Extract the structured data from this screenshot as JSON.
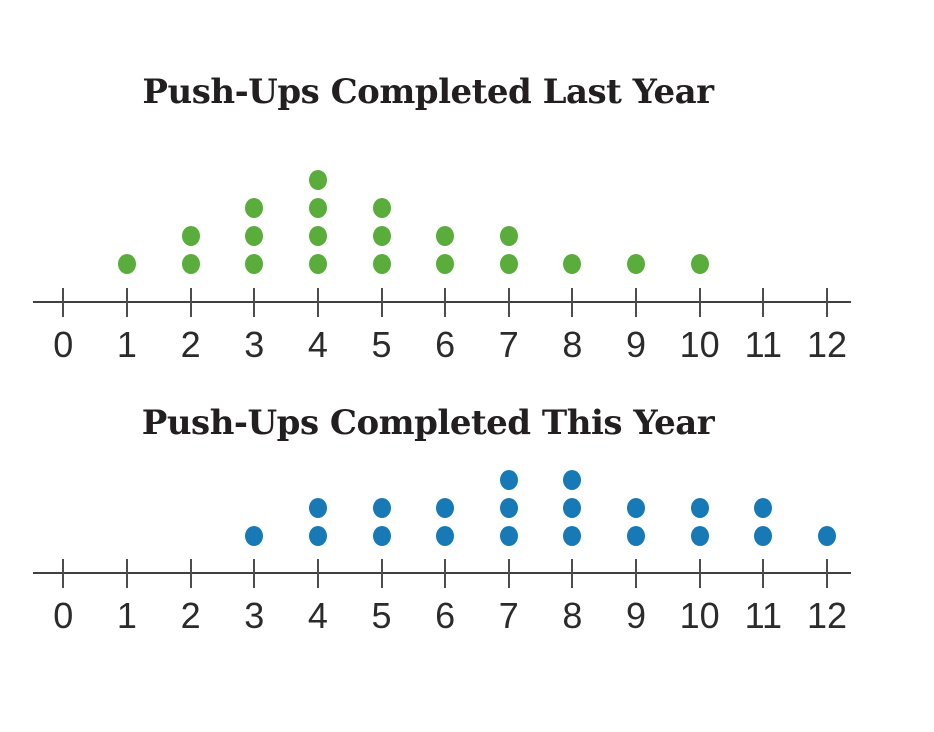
{
  "page": {
    "background_color": "#ffffff",
    "text_color": "#231f20"
  },
  "chart_data": [
    {
      "type": "dot_plot",
      "title": "Push-Ups Completed Last Year",
      "dot_color": "#5AAC3B",
      "axis_color": "#404040",
      "xlabel": "",
      "ylabel": "",
      "axis_range": [
        0,
        12
      ],
      "tick_labels": [
        "0",
        "1",
        "2",
        "3",
        "4",
        "5",
        "6",
        "7",
        "8",
        "9",
        "10",
        "11",
        "12"
      ],
      "categories": [
        0,
        1,
        2,
        3,
        4,
        5,
        6,
        7,
        8,
        9,
        10,
        11,
        12
      ],
      "counts": [
        0,
        1,
        2,
        3,
        4,
        3,
        2,
        2,
        1,
        1,
        1,
        0,
        0
      ]
    },
    {
      "type": "dot_plot",
      "title": "Push-Ups Completed This Year",
      "dot_color": "#1779B5",
      "axis_color": "#404040",
      "xlabel": "",
      "ylabel": "",
      "axis_range": [
        0,
        12
      ],
      "tick_labels": [
        "0",
        "1",
        "2",
        "3",
        "4",
        "5",
        "6",
        "7",
        "8",
        "9",
        "10",
        "11",
        "12"
      ],
      "categories": [
        0,
        1,
        2,
        3,
        4,
        5,
        6,
        7,
        8,
        9,
        10,
        11,
        12
      ],
      "counts": [
        0,
        0,
        0,
        1,
        2,
        2,
        2,
        3,
        3,
        2,
        2,
        2,
        1
      ]
    }
  ]
}
